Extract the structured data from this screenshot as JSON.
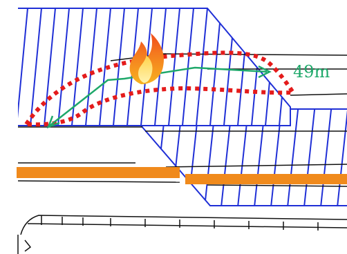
{
  "annotation": {
    "distance_label": "49m"
  },
  "colors": {
    "hatch": "#1f2fd6",
    "fire_zone": "#e41b1b",
    "path_arrow": "#1ea86a",
    "distance_text": "#1ea86a",
    "pipe": "#f08a1c",
    "outline": "#111111"
  },
  "icons": {
    "fire": "fire-icon"
  }
}
